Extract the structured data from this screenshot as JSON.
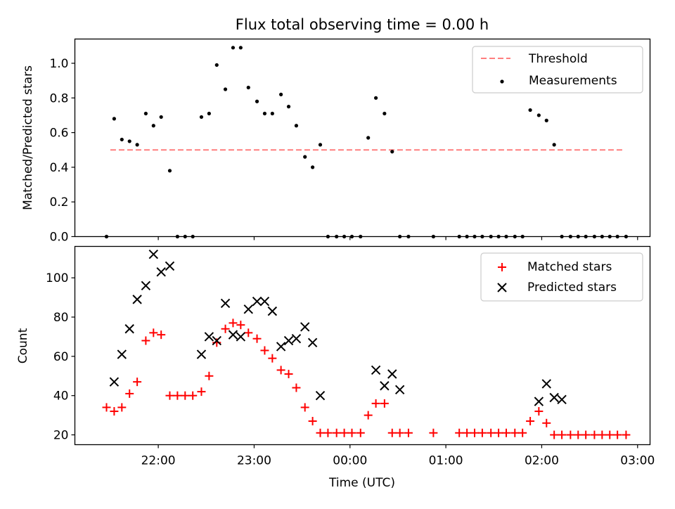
{
  "chart_data": [
    {
      "type": "scatter",
      "title": "Flux total observing time = 0.00 h",
      "xlabel": "",
      "ylabel": "Matched/Predicted stars",
      "ylim": [
        0,
        1.14
      ],
      "yticks": [
        "0.0",
        "0.2",
        "0.4",
        "0.6",
        "0.8",
        "1.0"
      ],
      "legend_position": "top-right",
      "threshold": {
        "name": "Threshold",
        "y": 0.5,
        "x_start": 21.5,
        "x_end": 26.85,
        "color": "#ff7f7f"
      },
      "series": [
        {
          "name": "Measurements",
          "color": "#000000",
          "marker": "dot",
          "x": [
            21.46,
            21.54,
            21.62,
            21.7,
            21.78,
            21.87,
            21.95,
            22.03,
            22.12,
            22.2,
            22.28,
            22.36,
            22.45,
            22.53,
            22.61,
            22.7,
            22.78,
            22.86,
            22.94,
            23.03,
            23.11,
            23.19,
            23.28,
            23.36,
            23.44,
            23.53,
            23.61,
            23.69,
            23.77,
            23.86,
            23.94,
            24.02,
            24.11,
            24.19,
            24.27,
            24.36,
            24.44,
            24.52,
            24.61,
            24.87,
            25.14,
            25.22,
            25.3,
            25.38,
            25.47,
            25.55,
            25.63,
            25.72,
            25.8,
            25.88,
            25.97,
            26.05,
            26.13,
            26.21,
            26.3,
            26.38,
            26.46,
            26.55,
            26.63,
            26.71,
            26.79,
            26.88
          ],
          "y": [
            0.0,
            0.68,
            0.56,
            0.55,
            0.53,
            0.71,
            0.64,
            0.69,
            0.38,
            0.0,
            0.0,
            0.0,
            0.69,
            0.71,
            0.99,
            0.85,
            1.09,
            1.09,
            0.86,
            0.78,
            0.71,
            0.71,
            0.82,
            0.75,
            0.64,
            0.46,
            0.4,
            0.53,
            0.0,
            0.0,
            0.0,
            0.0,
            0.0,
            0.57,
            0.8,
            0.71,
            0.49,
            0.0,
            0.0,
            0.0,
            0.0,
            0.0,
            0.0,
            0.0,
            0.0,
            0.0,
            0.0,
            0.0,
            0.0,
            0.73,
            0.7,
            0.67,
            0.53,
            0.0,
            0.0,
            0.0,
            0.0,
            0.0,
            0.0,
            0.0,
            0.0,
            0.0
          ]
        }
      ]
    },
    {
      "type": "scatter",
      "title": "",
      "xlabel": "Time (UTC)",
      "ylabel": "Count",
      "ylim": [
        15,
        116
      ],
      "xlim": [
        21.13,
        27.13
      ],
      "xticks": [
        {
          "value": 22,
          "label": "22:00"
        },
        {
          "value": 23,
          "label": "23:00"
        },
        {
          "value": 24,
          "label": "00:00"
        },
        {
          "value": 25,
          "label": "01:00"
        },
        {
          "value": 26,
          "label": "02:00"
        },
        {
          "value": 27,
          "label": "03:00"
        }
      ],
      "yticks": [
        "20",
        "40",
        "60",
        "80",
        "100"
      ],
      "legend_position": "top-right",
      "series": [
        {
          "name": "Matched stars",
          "color": "#ff0000",
          "marker": "plus",
          "x": [
            21.46,
            21.54,
            21.62,
            21.7,
            21.78,
            21.87,
            21.95,
            22.03,
            22.12,
            22.2,
            22.28,
            22.36,
            22.45,
            22.53,
            22.61,
            22.7,
            22.78,
            22.86,
            22.94,
            23.03,
            23.11,
            23.19,
            23.28,
            23.36,
            23.44,
            23.53,
            23.61,
            23.69,
            23.77,
            23.86,
            23.94,
            24.02,
            24.11,
            24.19,
            24.27,
            24.36,
            24.44,
            24.52,
            24.61,
            24.87,
            25.14,
            25.22,
            25.3,
            25.38,
            25.47,
            25.55,
            25.63,
            25.72,
            25.8,
            25.88,
            25.97,
            26.05,
            26.13,
            26.21,
            26.3,
            26.38,
            26.46,
            26.55,
            26.63,
            26.71,
            26.79,
            26.88
          ],
          "y": [
            34,
            32,
            34,
            41,
            47,
            68,
            72,
            71,
            40,
            40,
            40,
            40,
            42,
            50,
            67,
            74,
            77,
            76,
            72,
            69,
            63,
            59,
            53,
            51,
            44,
            34,
            27,
            21,
            21,
            21,
            21,
            21,
            21,
            30,
            36,
            36,
            21,
            21,
            21,
            21,
            21,
            21,
            21,
            21,
            21,
            21,
            21,
            21,
            21,
            27,
            32,
            26,
            20,
            20,
            20,
            20,
            20,
            20,
            20,
            20,
            20,
            20
          ]
        },
        {
          "name": "Predicted stars",
          "color": "#000000",
          "marker": "x",
          "x": [
            21.54,
            21.62,
            21.7,
            21.78,
            21.87,
            21.95,
            22.03,
            22.12,
            22.45,
            22.53,
            22.61,
            22.7,
            22.78,
            22.86,
            22.94,
            23.03,
            23.11,
            23.19,
            23.28,
            23.36,
            23.44,
            23.53,
            23.61,
            23.69,
            24.27,
            24.36,
            24.44,
            24.52,
            25.97,
            26.05,
            26.13,
            26.21
          ],
          "y": [
            47,
            61,
            74,
            89,
            96,
            112,
            103,
            106,
            61,
            70,
            68,
            87,
            71,
            70,
            84,
            88,
            88,
            83,
            65,
            68,
            69,
            75,
            67,
            40,
            53,
            45,
            51,
            43,
            37,
            46,
            39,
            38
          ]
        }
      ]
    }
  ]
}
